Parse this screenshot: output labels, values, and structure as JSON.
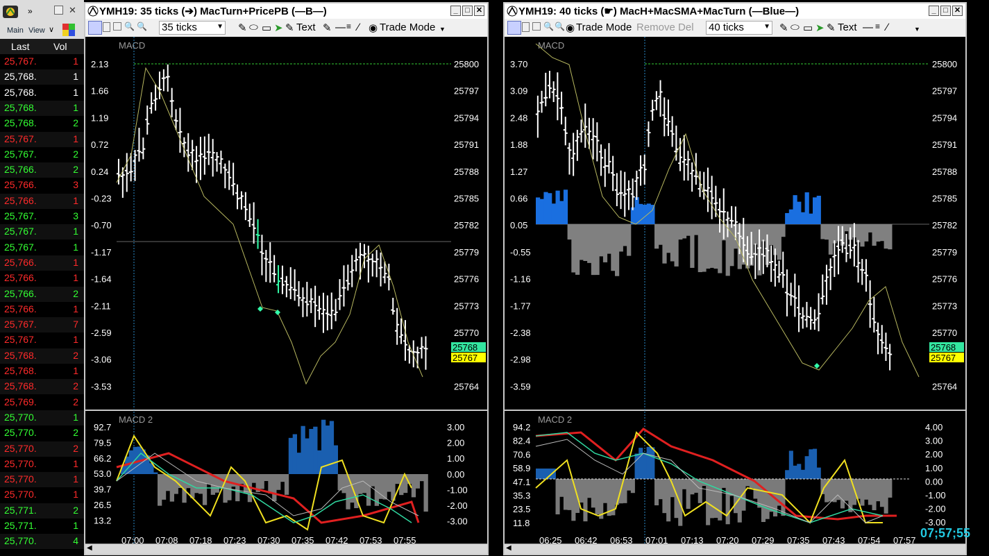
{
  "time_sales": {
    "menu": {
      "main": "Main",
      "view": "View"
    },
    "headers": {
      "last": "Last",
      "vol": "Vol"
    },
    "rows": [
      {
        "price": "25,767.",
        "vol": "1",
        "color": "#ff2a2a"
      },
      {
        "price": "25,768.",
        "vol": "1",
        "color": "#ffffff"
      },
      {
        "price": "25,768.",
        "vol": "1",
        "color": "#ffffff"
      },
      {
        "price": "25,768.",
        "vol": "1",
        "color": "#33ff33"
      },
      {
        "price": "25,768.",
        "vol": "2",
        "color": "#33ff33"
      },
      {
        "price": "25,767.",
        "vol": "1",
        "color": "#ff2a2a"
      },
      {
        "price": "25,767.",
        "vol": "2",
        "color": "#33ff33"
      },
      {
        "price": "25,766.",
        "vol": "2",
        "color": "#33ff33"
      },
      {
        "price": "25,766.",
        "vol": "3",
        "color": "#ff2a2a"
      },
      {
        "price": "25,766.",
        "vol": "1",
        "color": "#ff2a2a"
      },
      {
        "price": "25,767.",
        "vol": "3",
        "color": "#33ff33"
      },
      {
        "price": "25,767.",
        "vol": "1",
        "color": "#33ff33"
      },
      {
        "price": "25,767.",
        "vol": "1",
        "color": "#33ff33"
      },
      {
        "price": "25,766.",
        "vol": "1",
        "color": "#ff2a2a"
      },
      {
        "price": "25,766.",
        "vol": "1",
        "color": "#ff2a2a"
      },
      {
        "price": "25,766.",
        "vol": "2",
        "color": "#33ff33"
      },
      {
        "price": "25,766.",
        "vol": "1",
        "color": "#ff2a2a"
      },
      {
        "price": "25,767.",
        "vol": "7",
        "color": "#ff2a2a"
      },
      {
        "price": "25,767.",
        "vol": "1",
        "color": "#ff2a2a"
      },
      {
        "price": "25,768.",
        "vol": "2",
        "color": "#ff2a2a"
      },
      {
        "price": "25,768.",
        "vol": "1",
        "color": "#ff2a2a"
      },
      {
        "price": "25,768.",
        "vol": "2",
        "color": "#ff2a2a"
      },
      {
        "price": "25,769.",
        "vol": "2",
        "color": "#ff2a2a"
      },
      {
        "price": "25,770.",
        "vol": "1",
        "color": "#33ff33"
      },
      {
        "price": "25,770.",
        "vol": "2",
        "color": "#33ff33"
      },
      {
        "price": "25,770.",
        "vol": "2",
        "color": "#ff2a2a"
      },
      {
        "price": "25,770.",
        "vol": "1",
        "color": "#ff2a2a"
      },
      {
        "price": "25,770.",
        "vol": "1",
        "color": "#ff2a2a"
      },
      {
        "price": "25,770.",
        "vol": "1",
        "color": "#ff2a2a"
      },
      {
        "price": "25,771.",
        "vol": "2",
        "color": "#33ff33"
      },
      {
        "price": "25,771.",
        "vol": "1",
        "color": "#33ff33"
      },
      {
        "price": "25,770.",
        "vol": "4",
        "color": "#33ff33"
      }
    ]
  },
  "clock": "07;57;55",
  "charts": [
    {
      "title": "YMH19: 35 ticks (➔) MacTurn+PricePB (—B—)",
      "toolbar": {
        "interval": "35 ticks",
        "text": "Text",
        "trade_mode": "Trade Mode"
      },
      "upper": {
        "label": "MACD",
        "left_axis": [
          "2.13",
          "1.66",
          "1.19",
          "0.72",
          "0.24",
          "-0.23",
          "-0.70",
          "-1.17",
          "-1.64",
          "-2.11",
          "-2.59",
          "-3.06",
          "-3.53"
        ],
        "right_axis": [
          "25800",
          "25797",
          "25794",
          "25791",
          "25788",
          "25785",
          "25782",
          "25779",
          "25776",
          "25773",
          "25770",
          "",
          "25764"
        ],
        "last_price": "25768",
        "bid_price": "25767",
        "colors": {
          "last": "#33e6a0",
          "bid": "#ffff00",
          "bars": "#ffffff",
          "signal": "#cccc66",
          "marker": "#33ffaa"
        }
      },
      "lower": {
        "label": "MACD 2",
        "left_axis": [
          "92.7",
          "79.5",
          "66.2",
          "53.0",
          "39.7",
          "26.5",
          "13.2"
        ],
        "right_axis": [
          "3.00",
          "2.00",
          "1.00",
          "0.00",
          "-1.00",
          "-2.00",
          "-3.00"
        ]
      },
      "time_axis": [
        "07:00",
        "07:08",
        "07:18",
        "07:23",
        "07:30",
        "07:35",
        "07:42",
        "07:53",
        "07:55"
      ]
    },
    {
      "title": "YMH19: 40 ticks (☛) MacH+MacSMA+MacTurn (—Blue—)",
      "toolbar": {
        "trade_mode": "Trade Mode",
        "remove_del": "Remove Del",
        "interval": "40 ticks",
        "text": "Text"
      },
      "upper": {
        "label": "MACD",
        "left_axis": [
          "3.70",
          "3.09",
          "2.48",
          "1.88",
          "1.27",
          "0.66",
          "0.05",
          "-0.55",
          "-1.16",
          "-1.77",
          "-2.38",
          "-2.98",
          "-3.59"
        ],
        "right_axis": [
          "25800",
          "25797",
          "25794",
          "25791",
          "25788",
          "25785",
          "25782",
          "25779",
          "25776",
          "25773",
          "25770",
          "",
          "25764"
        ],
        "last_price": "25768",
        "bid_price": "25767",
        "colors": {
          "last": "#33e6a0",
          "bid": "#ffff00",
          "hist_pos": "#1a6fe0",
          "hist_neg": "#808080"
        }
      },
      "lower": {
        "label": "MACD 2",
        "left_axis": [
          "94.2",
          "82.4",
          "70.6",
          "58.9",
          "47.1",
          "35.3",
          "23.5",
          "11.8"
        ],
        "right_axis": [
          "4.00",
          "3.00",
          "2.00",
          "1.00",
          "0.00",
          "-1.00",
          "-2.00",
          "-3.00"
        ]
      },
      "time_axis": [
        "06:25",
        "06:42",
        "06:53",
        "07:01",
        "07:13",
        "07:20",
        "07:29",
        "07:35",
        "07:43",
        "07:54",
        "07:57"
      ]
    }
  ]
}
